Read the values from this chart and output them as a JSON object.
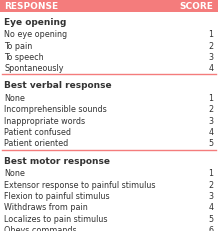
{
  "header_bg": "#f47c7c",
  "header_text_color": "#ffffff",
  "header_left": "RESPONSE",
  "header_right": "SCORE",
  "bg_color": "#ffffff",
  "text_color": "#333333",
  "section_line_color": "#f47c7c",
  "sections": [
    {
      "title": "Eye opening",
      "items": [
        [
          "No eye opening",
          "1"
        ],
        [
          "To pain",
          "2"
        ],
        [
          "To speech",
          "3"
        ],
        [
          "Spontaneously",
          "4"
        ]
      ]
    },
    {
      "title": "Best verbal response",
      "items": [
        [
          "None",
          "1"
        ],
        [
          "Incomprehensible sounds",
          "2"
        ],
        [
          "Inappropriate words",
          "3"
        ],
        [
          "Patient confused",
          "4"
        ],
        [
          "Patient oriented",
          "5"
        ]
      ]
    },
    {
      "title": "Best motor response",
      "items": [
        [
          "None",
          "1"
        ],
        [
          "Extensor response to painful stimulus",
          "2"
        ],
        [
          "Flexion to painful stimulus",
          "3"
        ],
        [
          "Withdraws from pain",
          "4"
        ],
        [
          "Localizes to pain stimulus",
          "5"
        ],
        [
          "Obeys commands",
          "6"
        ]
      ]
    }
  ],
  "title_fontsize": 6.5,
  "item_fontsize": 5.8,
  "header_fontsize": 6.5
}
